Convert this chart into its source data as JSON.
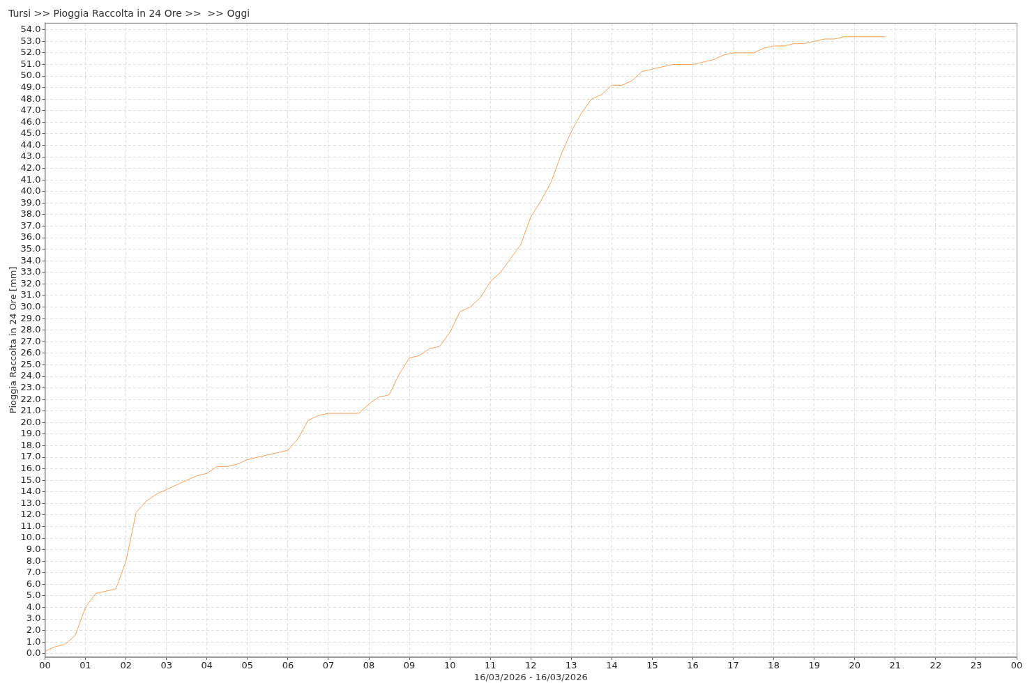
{
  "chart_data": {
    "type": "line",
    "title": "Tursi >> Pioggia Raccolta in 24 Ore >>  >> Oggi",
    "xlabel": "16/03/2026 - 16/03/2026",
    "ylabel": "Pioggia Raccolta in 24 Ore [mm]",
    "x": [
      0,
      0.25,
      0.5,
      0.75,
      1,
      1.25,
      1.5,
      1.75,
      2,
      2.25,
      2.5,
      2.75,
      3,
      3.25,
      3.5,
      3.75,
      4,
      4.25,
      4.5,
      4.75,
      5,
      5.25,
      5.5,
      5.75,
      6,
      6.25,
      6.5,
      6.75,
      7,
      7.25,
      7.5,
      7.75,
      8,
      8.25,
      8.5,
      8.75,
      9,
      9.25,
      9.5,
      9.75,
      10,
      10.25,
      10.5,
      10.75,
      11,
      11.25,
      11.5,
      11.75,
      12,
      12.25,
      12.5,
      12.75,
      13,
      13.25,
      13.5,
      13.75,
      14,
      14.25,
      14.5,
      14.75,
      15,
      15.25,
      15.5,
      15.75,
      16,
      16.25,
      16.5,
      16.75,
      17,
      17.25,
      17.5,
      17.75,
      18,
      18.25,
      18.5,
      18.75,
      19,
      19.25,
      19.5,
      19.75,
      20,
      20.25,
      20.5,
      20.75
    ],
    "series": [
      {
        "color": "#f5a05a",
        "values": [
          0.2,
          0.6,
          0.8,
          1.6,
          4.0,
          5.2,
          5.4,
          5.6,
          8.0,
          12.2,
          13.2,
          13.8,
          14.2,
          14.6,
          15.0,
          15.4,
          15.6,
          16.2,
          16.2,
          16.4,
          16.8,
          17.0,
          17.2,
          17.4,
          17.6,
          18.6,
          20.2,
          20.6,
          20.8,
          20.8,
          20.8,
          20.8,
          21.6,
          22.2,
          22.4,
          24.2,
          25.6,
          25.8,
          26.4,
          26.6,
          27.8,
          29.6,
          30.0,
          30.8,
          32.2,
          33.0,
          34.2,
          35.4,
          37.8,
          39.2,
          40.8,
          43.2,
          45.2,
          46.8,
          48.0,
          48.4,
          49.2,
          49.2,
          49.6,
          50.4,
          50.6,
          50.8,
          51.0,
          51.0,
          51.0,
          51.2,
          51.4,
          51.8,
          52.0,
          52.0,
          52.0,
          52.4,
          52.6,
          52.6,
          52.8,
          52.8,
          53.0,
          53.2,
          53.2,
          53.4,
          53.4,
          53.4,
          53.4,
          53.4
        ]
      }
    ],
    "xlim": [
      0,
      24
    ],
    "xticks": [
      {
        "value": 0,
        "label": "00"
      },
      {
        "value": 1,
        "label": "01"
      },
      {
        "value": 2,
        "label": "02"
      },
      {
        "value": 3,
        "label": "03"
      },
      {
        "value": 4,
        "label": "04"
      },
      {
        "value": 5,
        "label": "05"
      },
      {
        "value": 6,
        "label": "06"
      },
      {
        "value": 7,
        "label": "07"
      },
      {
        "value": 8,
        "label": "08"
      },
      {
        "value": 9,
        "label": "09"
      },
      {
        "value": 10,
        "label": "10"
      },
      {
        "value": 11,
        "label": "11"
      },
      {
        "value": 12,
        "label": "12"
      },
      {
        "value": 13,
        "label": "13"
      },
      {
        "value": 14,
        "label": "14"
      },
      {
        "value": 15,
        "label": "15"
      },
      {
        "value": 16,
        "label": "16"
      },
      {
        "value": 17,
        "label": "17"
      },
      {
        "value": 18,
        "label": "18"
      },
      {
        "value": 19,
        "label": "19"
      },
      {
        "value": 20,
        "label": "20"
      },
      {
        "value": 21,
        "label": "21"
      },
      {
        "value": 22,
        "label": "22"
      },
      {
        "value": 23,
        "label": "23"
      },
      {
        "value": 24,
        "label": "00"
      }
    ],
    "ylim": [
      -0.3,
      54.6
    ],
    "yticks": [
      {
        "value": 0,
        "label": "0.0"
      },
      {
        "value": 1,
        "label": "1.0"
      },
      {
        "value": 2,
        "label": "2.0"
      },
      {
        "value": 3,
        "label": "3.0"
      },
      {
        "value": 4,
        "label": "4.0"
      },
      {
        "value": 5,
        "label": "5.0"
      },
      {
        "value": 6,
        "label": "6.0"
      },
      {
        "value": 7,
        "label": "7.0"
      },
      {
        "value": 8,
        "label": "8.0"
      },
      {
        "value": 9,
        "label": "9.0"
      },
      {
        "value": 10,
        "label": "10.0"
      },
      {
        "value": 11,
        "label": "11.0"
      },
      {
        "value": 12,
        "label": "12.0"
      },
      {
        "value": 13,
        "label": "13.0"
      },
      {
        "value": 14,
        "label": "14.0"
      },
      {
        "value": 15,
        "label": "15.0"
      },
      {
        "value": 16,
        "label": "16.0"
      },
      {
        "value": 17,
        "label": "17.0"
      },
      {
        "value": 18,
        "label": "18.0"
      },
      {
        "value": 19,
        "label": "19.0"
      },
      {
        "value": 20,
        "label": "20.0"
      },
      {
        "value": 21,
        "label": "21.0"
      },
      {
        "value": 22,
        "label": "22.0"
      },
      {
        "value": 23,
        "label": "23.0"
      },
      {
        "value": 24,
        "label": "24.0"
      },
      {
        "value": 25,
        "label": "25.0"
      },
      {
        "value": 26,
        "label": "26.0"
      },
      {
        "value": 27,
        "label": "27.0"
      },
      {
        "value": 28,
        "label": "28.0"
      },
      {
        "value": 29,
        "label": "29.0"
      },
      {
        "value": 30,
        "label": "30.0"
      },
      {
        "value": 31,
        "label": "31.0"
      },
      {
        "value": 32,
        "label": "32.0"
      },
      {
        "value": 33,
        "label": "33.0"
      },
      {
        "value": 34,
        "label": "34.0"
      },
      {
        "value": 35,
        "label": "35.0"
      },
      {
        "value": 36,
        "label": "36.0"
      },
      {
        "value": 37,
        "label": "37.0"
      },
      {
        "value": 38,
        "label": "38.0"
      },
      {
        "value": 39,
        "label": "39.0"
      },
      {
        "value": 40,
        "label": "40.0"
      },
      {
        "value": 41,
        "label": "41.0"
      },
      {
        "value": 42,
        "label": "42.0"
      },
      {
        "value": 43,
        "label": "43.0"
      },
      {
        "value": 44,
        "label": "44.0"
      },
      {
        "value": 45,
        "label": "45.0"
      },
      {
        "value": 46,
        "label": "46.0"
      },
      {
        "value": 47,
        "label": "47.0"
      },
      {
        "value": 48,
        "label": "48.0"
      },
      {
        "value": 49,
        "label": "49.0"
      },
      {
        "value": 50,
        "label": "50.0"
      },
      {
        "value": 51,
        "label": "51.0"
      },
      {
        "value": 52,
        "label": "52.0"
      },
      {
        "value": 53,
        "label": "53.0"
      },
      {
        "value": 54,
        "label": "54.0"
      }
    ],
    "grid": true,
    "legend": false,
    "marker": "none",
    "line_style": "solid"
  }
}
